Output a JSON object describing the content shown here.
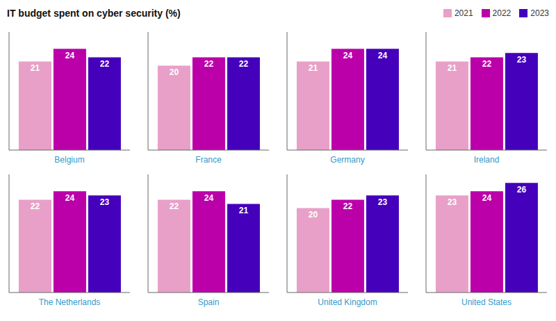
{
  "title": "IT budget spent on cyber security (%)",
  "legend": "upper right",
  "chart_data": [
    {
      "type": "bar",
      "title": "Belgium",
      "categories": [
        null
      ],
      "series": [
        {
          "name": "2021",
          "color": "#e8a0c8",
          "values": [
            21
          ]
        },
        {
          "name": "2022",
          "color": "#bb00aa",
          "values": [
            24
          ]
        },
        {
          "name": "2023",
          "color": "#4400bb",
          "values": [
            22
          ]
        }
      ],
      "ylim": [
        0,
        28
      ],
      "grid": false,
      "data_labels": true,
      "tick_labels": false
    },
    {
      "type": "bar",
      "title": "France",
      "categories": [
        null
      ],
      "series": [
        {
          "name": "2021",
          "color": "#e8a0c8",
          "values": [
            20
          ]
        },
        {
          "name": "2022",
          "color": "#bb00aa",
          "values": [
            22
          ]
        },
        {
          "name": "2023",
          "color": "#4400bb",
          "values": [
            22
          ]
        }
      ],
      "ylim": [
        0,
        28
      ],
      "grid": false,
      "data_labels": true,
      "tick_labels": false
    },
    {
      "type": "bar",
      "title": "Germany",
      "categories": [
        null
      ],
      "series": [
        {
          "name": "2021",
          "color": "#e8a0c8",
          "values": [
            21
          ]
        },
        {
          "name": "2022",
          "color": "#bb00aa",
          "values": [
            24
          ]
        },
        {
          "name": "2023",
          "color": "#4400bb",
          "values": [
            24
          ]
        }
      ],
      "ylim": [
        0,
        28
      ],
      "grid": false,
      "data_labels": true,
      "tick_labels": false
    },
    {
      "type": "bar",
      "title": "Ireland",
      "categories": [
        null
      ],
      "series": [
        {
          "name": "2021",
          "color": "#e8a0c8",
          "values": [
            21
          ]
        },
        {
          "name": "2022",
          "color": "#bb00aa",
          "values": [
            22
          ]
        },
        {
          "name": "2023",
          "color": "#4400bb",
          "values": [
            23
          ]
        }
      ],
      "ylim": [
        0,
        28
      ],
      "grid": false,
      "data_labels": true,
      "tick_labels": false
    },
    {
      "type": "bar",
      "title": "The Netherlands",
      "categories": [
        null
      ],
      "series": [
        {
          "name": "2021",
          "color": "#e8a0c8",
          "values": [
            22
          ]
        },
        {
          "name": "2022",
          "color": "#bb00aa",
          "values": [
            24
          ]
        },
        {
          "name": "2023",
          "color": "#4400bb",
          "values": [
            23
          ]
        }
      ],
      "ylim": [
        0,
        28
      ],
      "grid": false,
      "data_labels": true,
      "tick_labels": false
    },
    {
      "type": "bar",
      "title": "Spain",
      "categories": [
        null
      ],
      "series": [
        {
          "name": "2021",
          "color": "#e8a0c8",
          "values": [
            22
          ]
        },
        {
          "name": "2022",
          "color": "#bb00aa",
          "values": [
            24
          ]
        },
        {
          "name": "2023",
          "color": "#4400bb",
          "values": [
            21
          ]
        }
      ],
      "ylim": [
        0,
        28
      ],
      "grid": false,
      "data_labels": true,
      "tick_labels": false
    },
    {
      "type": "bar",
      "title": "United Kingdom",
      "categories": [
        null
      ],
      "series": [
        {
          "name": "2021",
          "color": "#e8a0c8",
          "values": [
            20
          ]
        },
        {
          "name": "2022",
          "color": "#bb00aa",
          "values": [
            22
          ]
        },
        {
          "name": "2023",
          "color": "#4400bb",
          "values": [
            23
          ]
        }
      ],
      "ylim": [
        0,
        28
      ],
      "grid": false,
      "data_labels": true,
      "tick_labels": false
    },
    {
      "type": "bar",
      "title": "United States",
      "categories": [
        null
      ],
      "series": [
        {
          "name": "2021",
          "color": "#e8a0c8",
          "values": [
            23
          ]
        },
        {
          "name": "2022",
          "color": "#bb00aa",
          "values": [
            24
          ]
        },
        {
          "name": "2023",
          "color": "#4400bb",
          "values": [
            26
          ]
        }
      ],
      "ylim": [
        0,
        28
      ],
      "grid": false,
      "data_labels": true,
      "tick_labels": false
    }
  ]
}
